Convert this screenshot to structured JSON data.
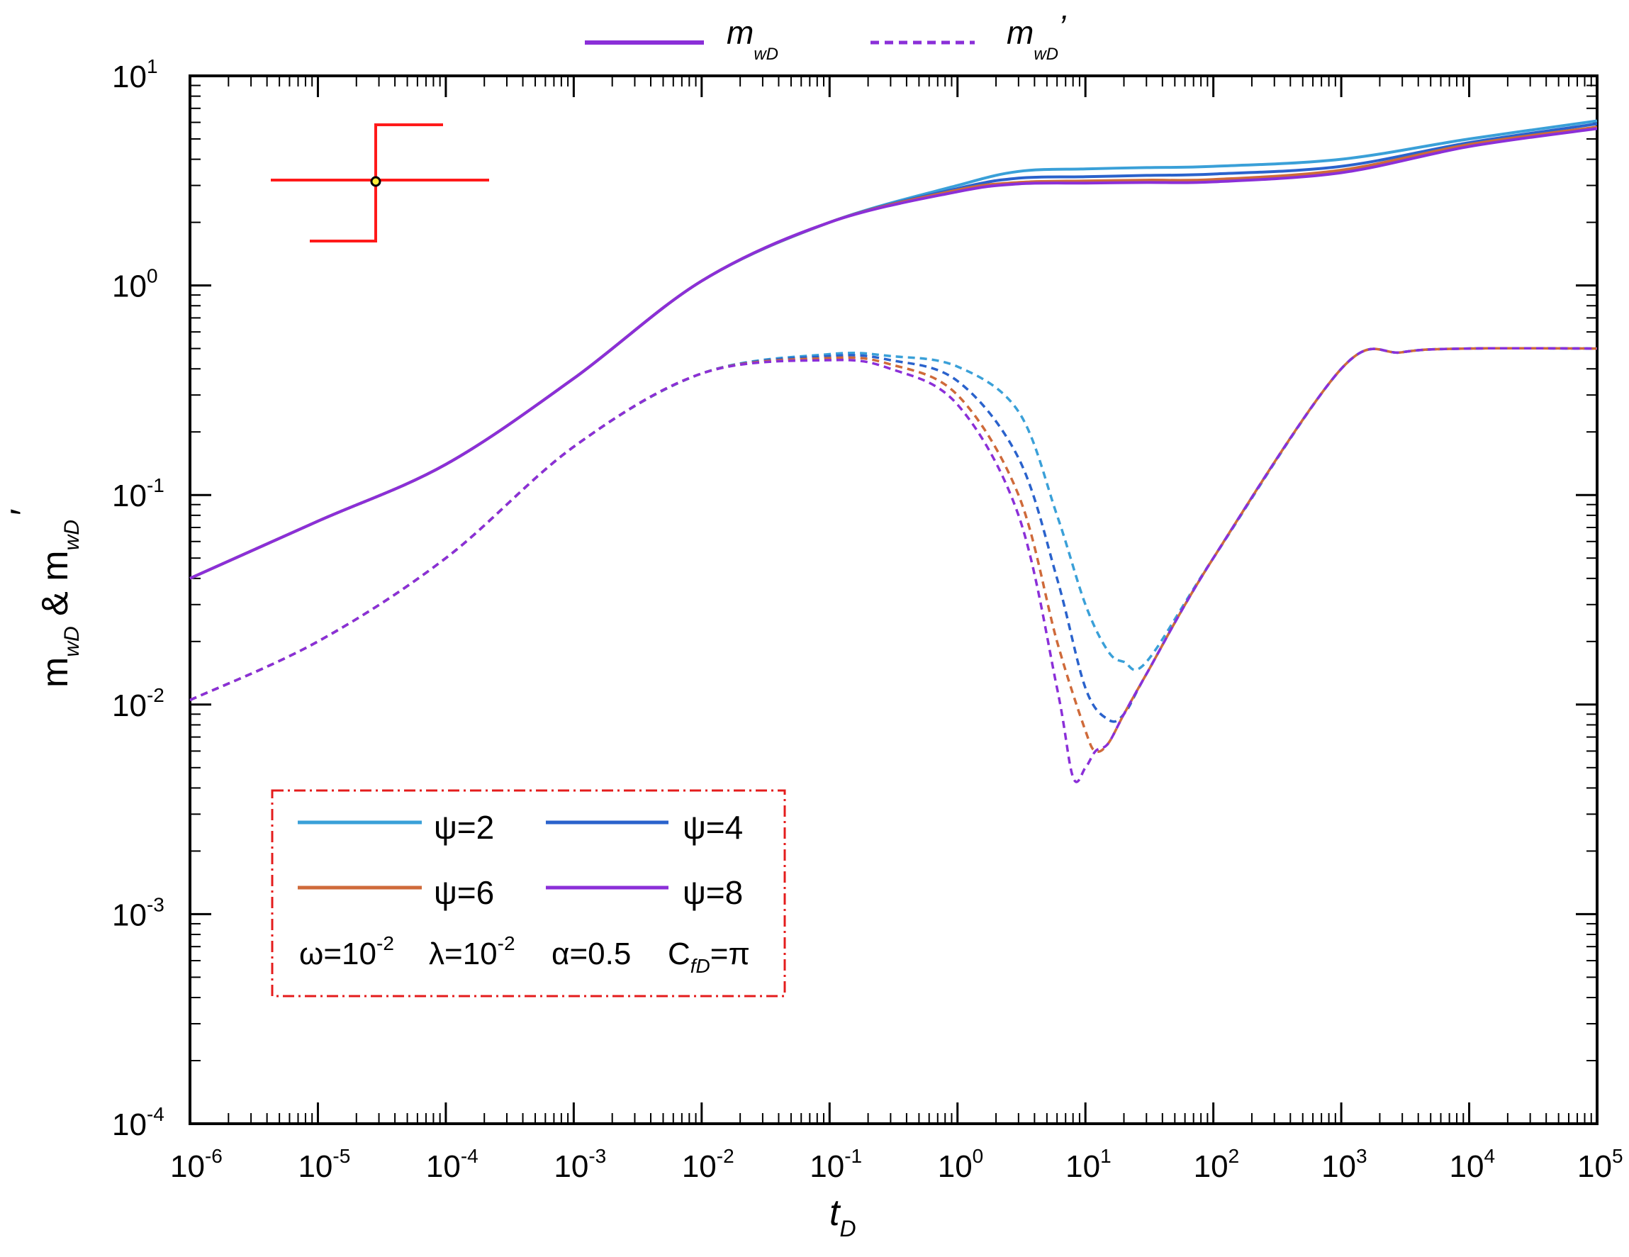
{
  "chart_data": {
    "type": "line",
    "xscale": "log",
    "yscale": "log",
    "xlim": [
      1e-06,
      100000.0
    ],
    "ylim": [
      0.0001,
      10
    ],
    "x_ticks": [
      {
        "base": "10",
        "exp": "-6"
      },
      {
        "base": "10",
        "exp": "-5"
      },
      {
        "base": "10",
        "exp": "-4"
      },
      {
        "base": "10",
        "exp": "-3"
      },
      {
        "base": "10",
        "exp": "-2"
      },
      {
        "base": "10",
        "exp": "-1"
      },
      {
        "base": "10",
        "exp": "0"
      },
      {
        "base": "10",
        "exp": "1"
      },
      {
        "base": "10",
        "exp": "2"
      },
      {
        "base": "10",
        "exp": "3"
      },
      {
        "base": "10",
        "exp": "4"
      },
      {
        "base": "10",
        "exp": "5"
      }
    ],
    "y_ticks": [
      {
        "base": "10",
        "exp": "-4"
      },
      {
        "base": "10",
        "exp": "-3"
      },
      {
        "base": "10",
        "exp": "-2"
      },
      {
        "base": "10",
        "exp": "-1"
      },
      {
        "base": "10",
        "exp": "0"
      },
      {
        "base": "10",
        "exp": "1"
      }
    ],
    "xlabel": {
      "main": "t",
      "sub": "D"
    },
    "ylabel": {
      "a": "m",
      "a_sub": "wD",
      "amp": " & ",
      "b": "m",
      "b_sub": "wD",
      "b_prime": "′"
    },
    "line_style_legend": [
      {
        "main": "m",
        "sub": "wD",
        "prime": "",
        "style": "solid"
      },
      {
        "main": "m",
        "sub": "wD",
        "prime": "’",
        "style": "dashed"
      }
    ],
    "series_legend": [
      {
        "label": "ψ=2",
        "color": "#3aa0d8"
      },
      {
        "label": "ψ=4",
        "color": "#2a62cc"
      },
      {
        "label": "ψ=6",
        "color": "#cf6a3a"
      },
      {
        "label": "ψ=8",
        "color": "#8b2fd8"
      }
    ],
    "params": [
      {
        "main": "ω=10",
        "sup": "-2",
        "sub": ""
      },
      {
        "main": "λ=10",
        "sup": "-2",
        "sub": ""
      },
      {
        "main": "α=0.5",
        "sup": "",
        "sub": ""
      },
      {
        "main": "C",
        "sup": "",
        "sub": "fD",
        "tail": "=π"
      }
    ],
    "series": [
      {
        "name": "ψ=2 m_wD",
        "color": "#3aa0d8",
        "style": "solid",
        "x": [
          1e-06,
          1e-05,
          0.0001,
          0.001,
          0.01,
          0.1,
          1,
          3,
          10,
          30,
          100,
          1000,
          10000.0,
          100000.0
        ],
        "y": [
          0.04,
          0.075,
          0.14,
          0.36,
          1.05,
          2.0,
          3.0,
          3.5,
          3.6,
          3.65,
          3.7,
          4.0,
          5.0,
          6.1
        ]
      },
      {
        "name": "ψ=4 m_wD",
        "color": "#2a62cc",
        "style": "solid",
        "x": [
          1e-06,
          1e-05,
          0.0001,
          0.001,
          0.01,
          0.1,
          1,
          3,
          10,
          30,
          100,
          1000,
          10000.0,
          100000.0
        ],
        "y": [
          0.04,
          0.075,
          0.14,
          0.36,
          1.05,
          2.0,
          2.9,
          3.25,
          3.3,
          3.35,
          3.4,
          3.7,
          4.8,
          5.9
        ]
      },
      {
        "name": "ψ=6 m_wD",
        "color": "#cf6a3a",
        "style": "solid",
        "x": [
          1e-06,
          1e-05,
          0.0001,
          0.001,
          0.01,
          0.1,
          1,
          3,
          10,
          30,
          100,
          1000,
          10000.0,
          100000.0
        ],
        "y": [
          0.04,
          0.075,
          0.14,
          0.36,
          1.05,
          2.0,
          2.85,
          3.1,
          3.15,
          3.18,
          3.2,
          3.55,
          4.7,
          5.7
        ]
      },
      {
        "name": "ψ=8 m_wD",
        "color": "#8b2fd8",
        "style": "solid",
        "x": [
          1e-06,
          1e-05,
          0.0001,
          0.001,
          0.01,
          0.1,
          1,
          3,
          10,
          30,
          100,
          1000,
          10000.0,
          100000.0
        ],
        "y": [
          0.04,
          0.075,
          0.14,
          0.36,
          1.05,
          2.0,
          2.8,
          3.05,
          3.08,
          3.1,
          3.12,
          3.45,
          4.6,
          5.6
        ]
      },
      {
        "name": "ψ=2 m_wD'",
        "color": "#3aa0d8",
        "style": "dashed",
        "x": [
          1e-06,
          1e-05,
          0.0001,
          0.001,
          0.01,
          0.1,
          0.3,
          1,
          3,
          6,
          10,
          15,
          20,
          30,
          100,
          1000,
          3000,
          10000.0,
          100000.0
        ],
        "y": [
          0.0105,
          0.02,
          0.05,
          0.17,
          0.38,
          0.47,
          0.46,
          0.41,
          0.25,
          0.08,
          0.03,
          0.018,
          0.016,
          0.016,
          0.05,
          0.4,
          0.48,
          0.5,
          0.5
        ]
      },
      {
        "name": "ψ=4 m_wD'",
        "color": "#2a62cc",
        "style": "dashed",
        "x": [
          1e-06,
          1e-05,
          0.0001,
          0.001,
          0.01,
          0.1,
          0.3,
          1,
          3,
          6,
          10,
          15,
          20,
          30,
          100,
          1000,
          3000,
          10000.0,
          100000.0
        ],
        "y": [
          0.0105,
          0.02,
          0.05,
          0.17,
          0.38,
          0.46,
          0.44,
          0.35,
          0.15,
          0.04,
          0.012,
          0.0085,
          0.009,
          0.014,
          0.05,
          0.4,
          0.48,
          0.5,
          0.5
        ]
      },
      {
        "name": "ψ=6 m_wD'",
        "color": "#cf6a3a",
        "style": "dashed",
        "x": [
          1e-06,
          1e-05,
          0.0001,
          0.001,
          0.01,
          0.1,
          0.3,
          1,
          3,
          6,
          10,
          12,
          15,
          20,
          30,
          100,
          1000,
          3000,
          10000.0,
          100000.0
        ],
        "y": [
          0.0105,
          0.02,
          0.05,
          0.17,
          0.38,
          0.45,
          0.42,
          0.3,
          0.1,
          0.02,
          0.0075,
          0.006,
          0.0065,
          0.009,
          0.014,
          0.05,
          0.4,
          0.48,
          0.5,
          0.5
        ]
      },
      {
        "name": "ψ=8 m_wD'",
        "color": "#8b2fd8",
        "style": "dashed",
        "x": [
          1e-06,
          1e-05,
          0.0001,
          0.001,
          0.01,
          0.1,
          0.3,
          1,
          3,
          6,
          8,
          10,
          12,
          15,
          20,
          30,
          100,
          1000,
          3000,
          10000.0,
          100000.0
        ],
        "y": [
          0.0105,
          0.02,
          0.05,
          0.17,
          0.38,
          0.44,
          0.4,
          0.27,
          0.08,
          0.012,
          0.0045,
          0.005,
          0.006,
          0.0065,
          0.009,
          0.014,
          0.05,
          0.4,
          0.48,
          0.5,
          0.5
        ]
      }
    ]
  }
}
